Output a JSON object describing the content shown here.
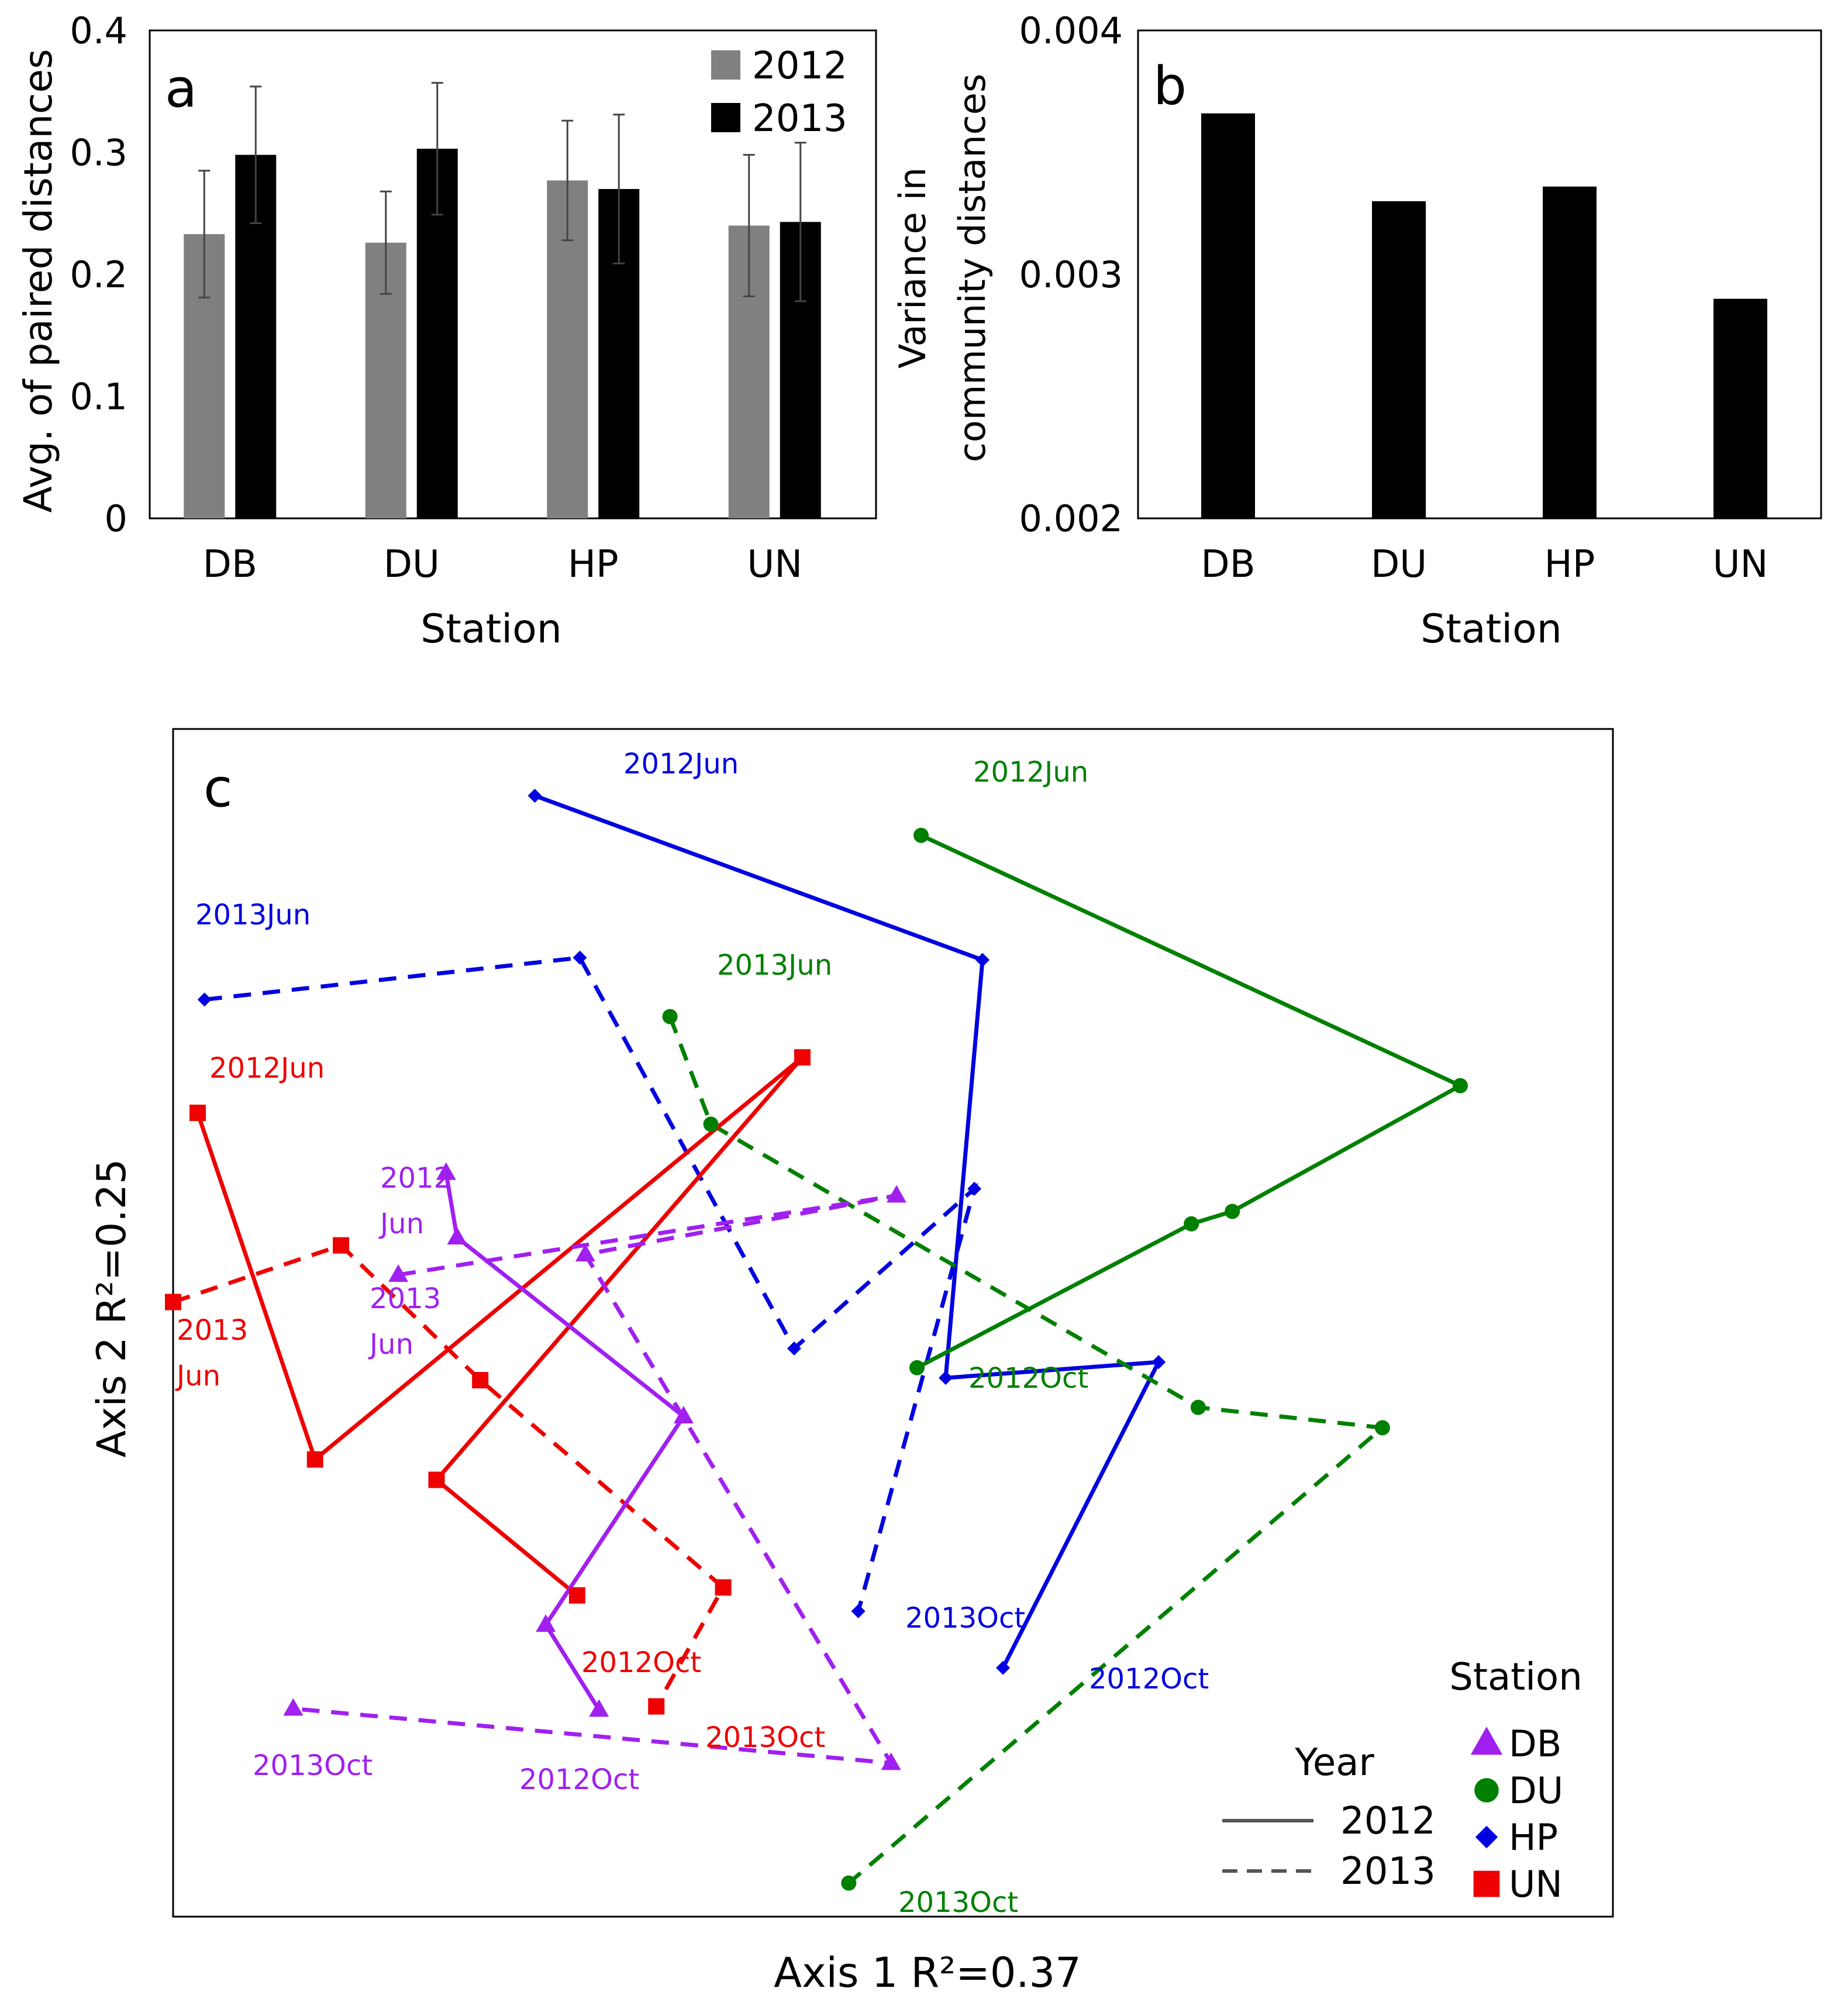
{
  "chart_data": [
    {
      "panel": "a",
      "type": "bar",
      "xlabel": "Station",
      "ylabel": "Avg. of paired distances",
      "categories": [
        "DB",
        "DU",
        "HP",
        "UN"
      ],
      "ylim": [
        0,
        0.4
      ],
      "yticks": [
        "0",
        "0.1",
        "0.2",
        "0.3",
        "0.4"
      ],
      "legend_position": "top-right",
      "series": [
        {
          "name": "2012",
          "color": "#808080",
          "values": [
            0.233,
            0.226,
            0.277,
            0.24
          ],
          "errors": [
            0.052,
            0.042,
            0.049,
            0.058
          ]
        },
        {
          "name": "2013",
          "color": "#000000",
          "values": [
            0.298,
            0.303,
            0.27,
            0.243
          ],
          "errors": [
            0.056,
            0.054,
            0.061,
            0.065
          ]
        }
      ]
    },
    {
      "panel": "b",
      "type": "bar",
      "xlabel": "Station",
      "ylabel_lines": [
        "Variance in",
        "community distances"
      ],
      "categories": [
        "DB",
        "DU",
        "HP",
        "UN"
      ],
      "ylim": [
        0.002,
        0.004
      ],
      "yticks": [
        "0.002",
        "0.003",
        "0.004"
      ],
      "values": [
        0.00366,
        0.0033,
        0.00336,
        0.0029
      ],
      "color": "#000000"
    },
    {
      "panel": "c",
      "type": "line",
      "xlabel": "Axis 1  R²=0.37",
      "ylabel": "Axis 2  R²=0.25",
      "xlim": [
        0,
        100
      ],
      "ylim": [
        0,
        100
      ],
      "legend": {
        "year_title": "Year",
        "years": [
          {
            "label": "2012",
            "dash": "solid"
          },
          {
            "label": "2013",
            "dash": "dashed"
          }
        ],
        "station_title": "Station",
        "stations": [
          {
            "label": "DB",
            "marker": "triangle",
            "color": "#a020f0"
          },
          {
            "label": "DU",
            "marker": "circle",
            "color": "#008000"
          },
          {
            "label": "HP",
            "marker": "diamond",
            "color": "#0000e0"
          },
          {
            "label": "UN",
            "marker": "square",
            "color": "#ee0000"
          }
        ]
      },
      "series": [
        {
          "station": "HP",
          "year": "2012",
          "color": "#0000e0",
          "marker": "diamond",
          "dash": "solid",
          "points": [
            [
              26.5,
              97
            ],
            [
              59.3,
              82.5
            ],
            [
              56.6,
              45.6
            ],
            [
              72.2,
              47
            ],
            [
              60.8,
              20
            ]
          ]
        },
        {
          "station": "HP",
          "year": "2013",
          "color": "#0000e0",
          "marker": "diamond",
          "dash": "dashed",
          "points": [
            [
              2.3,
              79
            ],
            [
              29.8,
              82.7
            ],
            [
              45.5,
              48.2
            ],
            [
              58.7,
              62.3
            ],
            [
              50.2,
              25
            ]
          ]
        },
        {
          "station": "DU",
          "year": "2012",
          "color": "#008000",
          "marker": "circle",
          "dash": "solid",
          "points": [
            [
              54.8,
              93.5
            ],
            [
              94.3,
              71.4
            ],
            [
              77.6,
              60.3
            ],
            [
              74.6,
              59.2
            ],
            [
              54.5,
              46.5
            ]
          ]
        },
        {
          "station": "DU",
          "year": "2013",
          "color": "#008000",
          "marker": "circle",
          "dash": "dashed",
          "points": [
            [
              36.4,
              77.5
            ],
            [
              39.4,
              68
            ],
            [
              75.1,
              43
            ],
            [
              88.6,
              41.2
            ],
            [
              49.5,
              1
            ]
          ]
        },
        {
          "station": "UN",
          "year": "2012",
          "color": "#ee0000",
          "marker": "square",
          "dash": "solid",
          "points": [
            [
              1.8,
              69
            ],
            [
              10.4,
              38.4
            ],
            [
              46.1,
              73.9
            ],
            [
              19.3,
              36.6
            ],
            [
              29.6,
              26.4
            ]
          ]
        },
        {
          "station": "UN",
          "year": "2013",
          "color": "#ee0000",
          "marker": "square",
          "dash": "dashed",
          "points": [
            [
              0,
              52.3
            ],
            [
              12.3,
              57.3
            ],
            [
              22.5,
              45.4
            ],
            [
              40.3,
              27.1
            ],
            [
              35.4,
              16.6
            ]
          ]
        },
        {
          "station": "DB",
          "year": "2012",
          "color": "#a020f0",
          "marker": "triangle",
          "dash": "solid",
          "points": [
            [
              20,
              63.7
            ],
            [
              20.8,
              58
            ],
            [
              37.4,
              42.2
            ],
            [
              27.3,
              23.8
            ],
            [
              31.2,
              16.3
            ]
          ]
        },
        {
          "station": "DB",
          "year": "2013",
          "color": "#a020f0",
          "marker": "triangle",
          "dash": "dashed",
          "points": [
            [
              16.5,
              54.7
            ],
            [
              53,
              61.7
            ],
            [
              30.2,
              56.5
            ],
            [
              52.6,
              11.6
            ],
            [
              8.8,
              16.4
            ]
          ]
        }
      ],
      "annotations": [
        {
          "station": "HP",
          "lines": [
            "2012Jun"
          ]
        },
        {
          "station": "HP",
          "lines": [
            "2013Jun"
          ]
        },
        {
          "station": "HP",
          "lines": [
            "2012Oct"
          ]
        },
        {
          "station": "HP",
          "lines": [
            "2013Oct"
          ]
        },
        {
          "station": "DU",
          "lines": [
            "2012Jun"
          ]
        },
        {
          "station": "DU",
          "lines": [
            "2013Jun"
          ]
        },
        {
          "station": "DU",
          "lines": [
            "2012Oct"
          ]
        },
        {
          "station": "DU",
          "lines": [
            "2013Oct"
          ]
        },
        {
          "station": "UN",
          "lines": [
            "2012Jun"
          ]
        },
        {
          "station": "UN",
          "lines": [
            "2013",
            "Jun"
          ]
        },
        {
          "station": "UN",
          "lines": [
            "2012Oct"
          ]
        },
        {
          "station": "UN",
          "lines": [
            "2013Oct"
          ]
        },
        {
          "station": "DB",
          "lines": [
            "2012",
            "Jun"
          ]
        },
        {
          "station": "DB",
          "lines": [
            "2013",
            "Jun"
          ]
        },
        {
          "station": "DB",
          "lines": [
            "2012Oct"
          ]
        },
        {
          "station": "DB",
          "lines": [
            "2013Oct"
          ]
        }
      ]
    }
  ]
}
